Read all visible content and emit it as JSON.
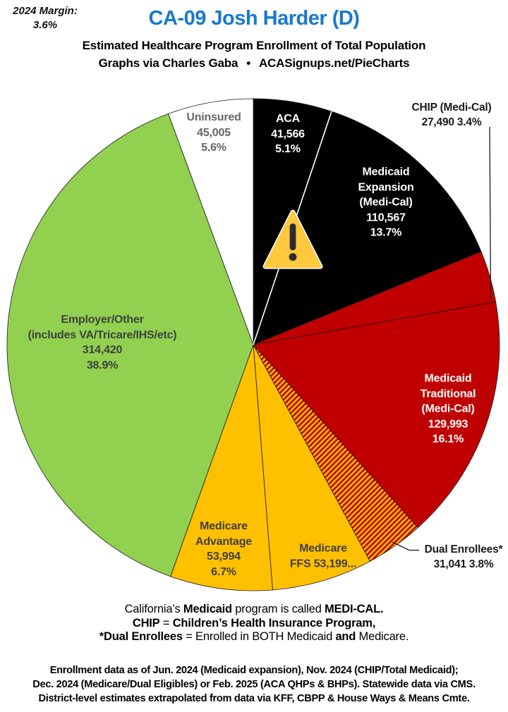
{
  "header": {
    "margin_label": "2024 Margin:",
    "margin_value": "3.6%",
    "title": "CA-09 Josh Harder (D)",
    "title_color": "#1779CC",
    "subtitle": "Estimated Healthcare Program Enrollment of Total Population",
    "credit_left": "Graphs via Charles Gaba",
    "credit_sep": "•",
    "credit_right": "ACASignups.net/PieCharts"
  },
  "chart_data": {
    "type": "pie",
    "title": "Estimated Healthcare Program Enrollment of Total Population",
    "direction": "clockwise",
    "start_angle_deg": 0,
    "hatch_colors": [
      "#C00000",
      "#FFC000"
    ],
    "slices": [
      {
        "id": "aca",
        "name": "ACA",
        "value": 41566,
        "pct": 5.1,
        "color": "#000000",
        "label_color": "#FFFFFF",
        "lines": [
          "ACA",
          "41,566",
          "5.1%"
        ]
      },
      {
        "id": "medicaid-expansion",
        "name": "Medicaid Expansion (Medi-Cal)",
        "value": 110567,
        "pct": 13.7,
        "color": "#000000",
        "label_color": "#FFFFFF",
        "lines": [
          "Medicaid",
          "Expansion",
          "(Medi-Cal)",
          "110,567",
          "13.7%"
        ]
      },
      {
        "id": "chip",
        "name": "CHIP (Medi-Cal)",
        "value": 27490,
        "pct": 3.4,
        "color": "#C00000",
        "label_color": "#1A1A1A",
        "lines": [
          "CHIP (Medi-Cal)",
          "27,490 3.4%"
        ]
      },
      {
        "id": "medicaid-traditional",
        "name": "Medicaid Traditional (Medi-Cal)",
        "value": 129993,
        "pct": 16.1,
        "color": "#C00000",
        "label_color": "#FFFFFF",
        "lines": [
          "Medicaid",
          "Traditional",
          "(Medi-Cal)",
          "129,993",
          "16.1%"
        ]
      },
      {
        "id": "dual",
        "name": "Dual Enrollees*",
        "value": 31041,
        "pct": 3.8,
        "color": "hatch",
        "label_color": "#1A1A1A",
        "lines": [
          "Dual Enrollees*",
          "31,041 3.8%"
        ]
      },
      {
        "id": "medicare-ffs",
        "name": "Medicare FFS",
        "value": 53199,
        "pct": 6.6,
        "color": "#FFC000",
        "label_color": "#404040",
        "lines": [
          "Medicare",
          "FFS 53,199..."
        ]
      },
      {
        "id": "medicare-advantage",
        "name": "Medicare Advantage",
        "value": 53994,
        "pct": 6.7,
        "color": "#FFC000",
        "label_color": "#404040",
        "lines": [
          "Medicare",
          "Advantage",
          "53,994",
          "6.7%"
        ]
      },
      {
        "id": "employer",
        "name": "Employer/Other (includes VA/Tricare/IHS/etc)",
        "value": 314420,
        "pct": 38.9,
        "color": "#92D050",
        "label_color": "#404040",
        "lines": [
          "Employer/Other",
          "(includes VA/Tricare/IHS/etc)",
          "314,420",
          "38.9%"
        ]
      },
      {
        "id": "uninsured",
        "name": "Uninsured",
        "value": 45005,
        "pct": 5.6,
        "color": "#FFFFFF",
        "label_color": "#666666",
        "lines": [
          "Uninsured",
          "45,005",
          "5.6%"
        ]
      }
    ]
  },
  "warning_icon": {
    "fill": "#FFC83D",
    "border": "#FFFFFF",
    "mark_color": "#2B2B2B"
  },
  "notes": [
    {
      "segs": [
        {
          "t": "California’s "
        },
        {
          "t": "Medicaid"
        },
        {
          "t": " program is called "
        },
        {
          "t": "MEDI-CAL."
        }
      ]
    },
    {
      "segs": [
        {
          "t": "CHIP"
        },
        {
          "t": " = "
        },
        {
          "t": "Children’s Health Insurance Program,"
        }
      ]
    },
    {
      "segs": [
        {
          "t": "*Dual Enrollees"
        },
        {
          "t": " = Enrolled in BOTH Medicaid "
        },
        {
          "t": "and"
        },
        {
          "t": " Medicare."
        }
      ]
    }
  ],
  "footnotes": [
    "Enrollment data as of Jun. 2024 (Medicaid expansion), Nov. 2024 (CHIP/Total Medicaid);",
    "Dec. 2024 (Medicare/Dual Eligibles) or Feb. 2025 (ACA QHPs & BHPs). Statewide data via CMS.",
    "District-level estimates extrapolated from data via KFF, CBPP & House Ways & Means Cmte."
  ]
}
